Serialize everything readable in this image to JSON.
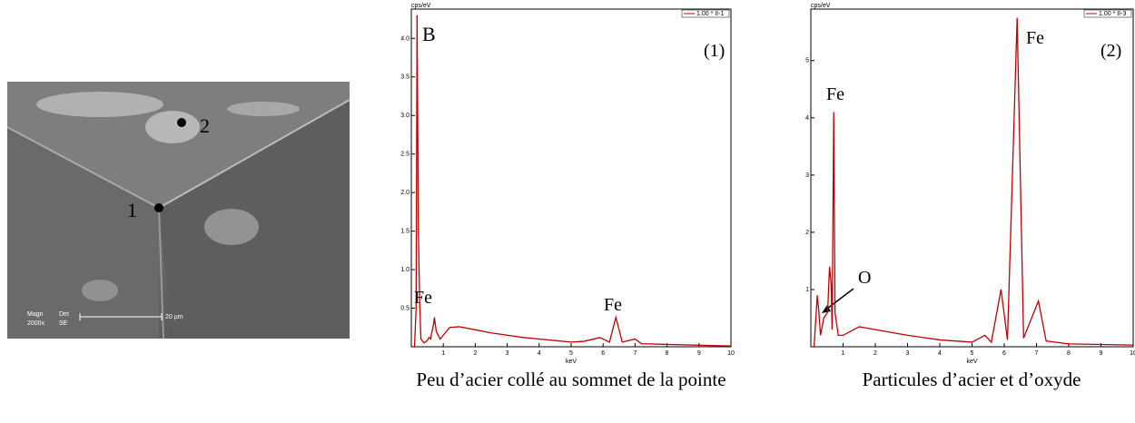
{
  "sem_image": {
    "point_1": "1",
    "point_2": "2",
    "magn": "Magn",
    "magn_value": "2000x",
    "det": "Det",
    "det_value": "SE",
    "scale": "20 µm"
  },
  "chart_data": [
    {
      "type": "line",
      "y_label": "cps/eV",
      "x_label": "keV",
      "caption": "Peu d’acier collé au sommet de la pointe",
      "annotations": [
        "B",
        "(1)",
        "Fe",
        "Fe"
      ],
      "x": [
        0.1,
        0.15,
        0.18,
        0.22,
        0.26,
        0.3,
        0.4,
        0.5,
        0.55,
        0.6,
        0.7,
        0.72,
        0.78,
        0.9,
        1.0,
        1.2,
        1.5,
        2.0,
        2.5,
        3,
        3.5,
        4,
        4.5,
        5,
        5.4,
        5.9,
        6.2,
        6.4,
        6.6,
        7.0,
        7.2,
        8,
        9,
        10
      ],
      "series": [
        {
          "name": "1.00 * II-1",
          "color": "#c00000",
          "values": [
            0,
            0.5,
            4.3,
            1.5,
            0.6,
            0.1,
            0.05,
            0.08,
            0.12,
            0.1,
            0.3,
            0.38,
            0.2,
            0.1,
            0.15,
            0.25,
            0.26,
            0.22,
            0.18,
            0.15,
            0.12,
            0.1,
            0.08,
            0.06,
            0.07,
            0.12,
            0.06,
            0.38,
            0.06,
            0.1,
            0.04,
            0.03,
            0.02,
            0.01
          ]
        }
      ],
      "xlim": [
        0,
        10
      ],
      "xticks": [
        1,
        2,
        3,
        4,
        5,
        6,
        7,
        8,
        9,
        10
      ],
      "ylim": [
        0,
        4.38
      ],
      "yticks": [
        0.5,
        {
          "value": 1,
          "label": "1.0"
        },
        1.5,
        {
          "value": 2,
          "label": "2.0"
        },
        2.5,
        {
          "value": 3,
          "label": "3.0"
        },
        3.5,
        {
          "value": 4,
          "label": "4.0"
        }
      ],
      "legend": "upper right"
    },
    {
      "type": "line",
      "y_label": "cps/eV",
      "x_label": "keV",
      "caption": "Particules d’acier et d’oxyde",
      "annotations": [
        "Fe",
        "(2)",
        "Fe",
        "O"
      ],
      "x": [
        0.1,
        0.2,
        0.25,
        0.3,
        0.4,
        0.52,
        0.58,
        0.63,
        0.66,
        0.71,
        0.75,
        0.85,
        1.0,
        1.5,
        2,
        2.5,
        3,
        4,
        5,
        5.4,
        5.6,
        5.9,
        6.1,
        6.4,
        6.6,
        7.06,
        7.3,
        8,
        9,
        10
      ],
      "series": [
        {
          "name": "1.00 * II-3",
          "color": "#c00000",
          "values": [
            0,
            0.9,
            0.6,
            0.2,
            0.5,
            0.6,
            1.4,
            1.1,
            0.3,
            4.1,
            0.6,
            0.2,
            0.2,
            0.35,
            0.3,
            0.25,
            0.2,
            0.12,
            0.08,
            0.2,
            0.08,
            1.0,
            0.12,
            5.75,
            0.15,
            0.8,
            0.1,
            0.05,
            0.04,
            0.03
          ]
        }
      ],
      "xlim": [
        0,
        10
      ],
      "xticks": [
        1,
        2,
        3,
        4,
        5,
        6,
        7,
        8,
        9,
        10
      ],
      "ylim": [
        0,
        5.9
      ],
      "yticks": [
        1,
        2,
        3,
        4,
        5
      ],
      "legend": "upper right"
    }
  ]
}
